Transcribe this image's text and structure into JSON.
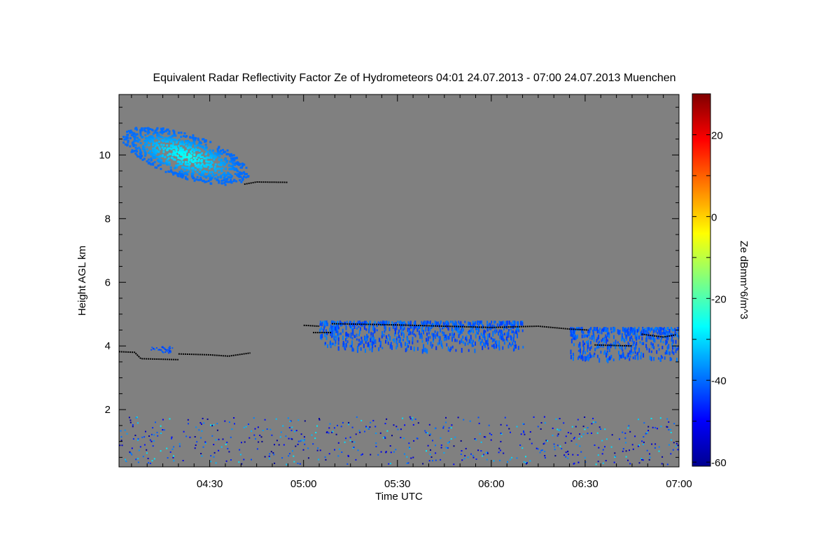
{
  "chart_data": {
    "type": "heatmap",
    "title": "Equivalent Radar Reflectivity Factor Ze of Hydrometeors   04:01 24.07.2013 - 07:00 24.07.2013 Muenchen",
    "xlabel": "Time UTC",
    "ylabel": "Height AGL km",
    "colorbar_label": "Ze dBmm^6/m^3",
    "x_ticks": [
      "04:30",
      "05:00",
      "05:30",
      "06:00",
      "06:30",
      "07:00"
    ],
    "xlim": [
      "04:01",
      "07:00"
    ],
    "y_ticks": [
      2,
      4,
      6,
      8,
      10
    ],
    "ylim": [
      0.2,
      11.9
    ],
    "colorbar_ticks": [
      20,
      0,
      -20,
      -40,
      -60
    ],
    "colorbar_range": [
      -61,
      30
    ],
    "colormap": "jet",
    "background_color": "#808080",
    "cloud_base_color": "#000000",
    "echo_regions": [
      {
        "name": "upper cloud",
        "time_start": "04:01",
        "time_end": "04:41",
        "height_base_km": 9.1,
        "height_top_km": 11.1,
        "ze_min_dbz": -40,
        "ze_max_dbz": -25
      },
      {
        "name": "small echo",
        "time_start": "04:11",
        "time_end": "04:18",
        "height_base_km": 3.8,
        "height_top_km": 4.0,
        "ze_min_dbz": -45,
        "ze_max_dbz": -40
      },
      {
        "name": "mid-level virga",
        "time_start": "05:05",
        "time_end": "06:10",
        "height_base_km": 3.9,
        "height_top_km": 4.8,
        "ze_min_dbz": -45,
        "ze_max_dbz": -38
      },
      {
        "name": "late mid-level cloud",
        "time_start": "06:25",
        "time_end": "07:00",
        "height_base_km": 3.6,
        "height_top_km": 4.6,
        "ze_min_dbz": -45,
        "ze_max_dbz": -38
      },
      {
        "name": "boundary layer clutter",
        "time_start": "04:01",
        "time_end": "07:00",
        "height_base_km": 0.3,
        "height_top_km": 1.8,
        "ze_min_dbz": -60,
        "ze_max_dbz": -28
      }
    ],
    "cloud_base_lines": [
      {
        "points": [
          [
            "04:01",
            3.82
          ],
          [
            "04:06",
            3.8
          ],
          [
            "04:08",
            3.6
          ],
          [
            "04:20",
            3.57
          ]
        ]
      },
      {
        "points": [
          [
            "04:20",
            3.75
          ],
          [
            "04:30",
            3.72
          ],
          [
            "04:36",
            3.68
          ],
          [
            "04:43",
            3.78
          ]
        ]
      },
      {
        "points": [
          [
            "04:41",
            9.08
          ],
          [
            "04:45",
            9.15
          ],
          [
            "04:55",
            9.14
          ]
        ]
      },
      {
        "points": [
          [
            "05:00",
            4.65
          ],
          [
            "05:05",
            4.62
          ]
        ]
      },
      {
        "points": [
          [
            "05:03",
            4.42
          ],
          [
            "05:09",
            4.42
          ]
        ]
      },
      {
        "points": [
          [
            "05:09",
            4.7
          ],
          [
            "05:30",
            4.66
          ],
          [
            "05:45",
            4.62
          ],
          [
            "06:00",
            4.58
          ],
          [
            "06:15",
            4.62
          ],
          [
            "06:25",
            4.53
          ],
          [
            "06:31",
            4.5
          ]
        ]
      },
      {
        "points": [
          [
            "06:33",
            4.03
          ],
          [
            "06:45",
            4.0
          ]
        ]
      },
      {
        "points": [
          [
            "06:48",
            4.37
          ],
          [
            "06:55",
            4.28
          ],
          [
            "06:59",
            4.35
          ]
        ]
      }
    ]
  }
}
